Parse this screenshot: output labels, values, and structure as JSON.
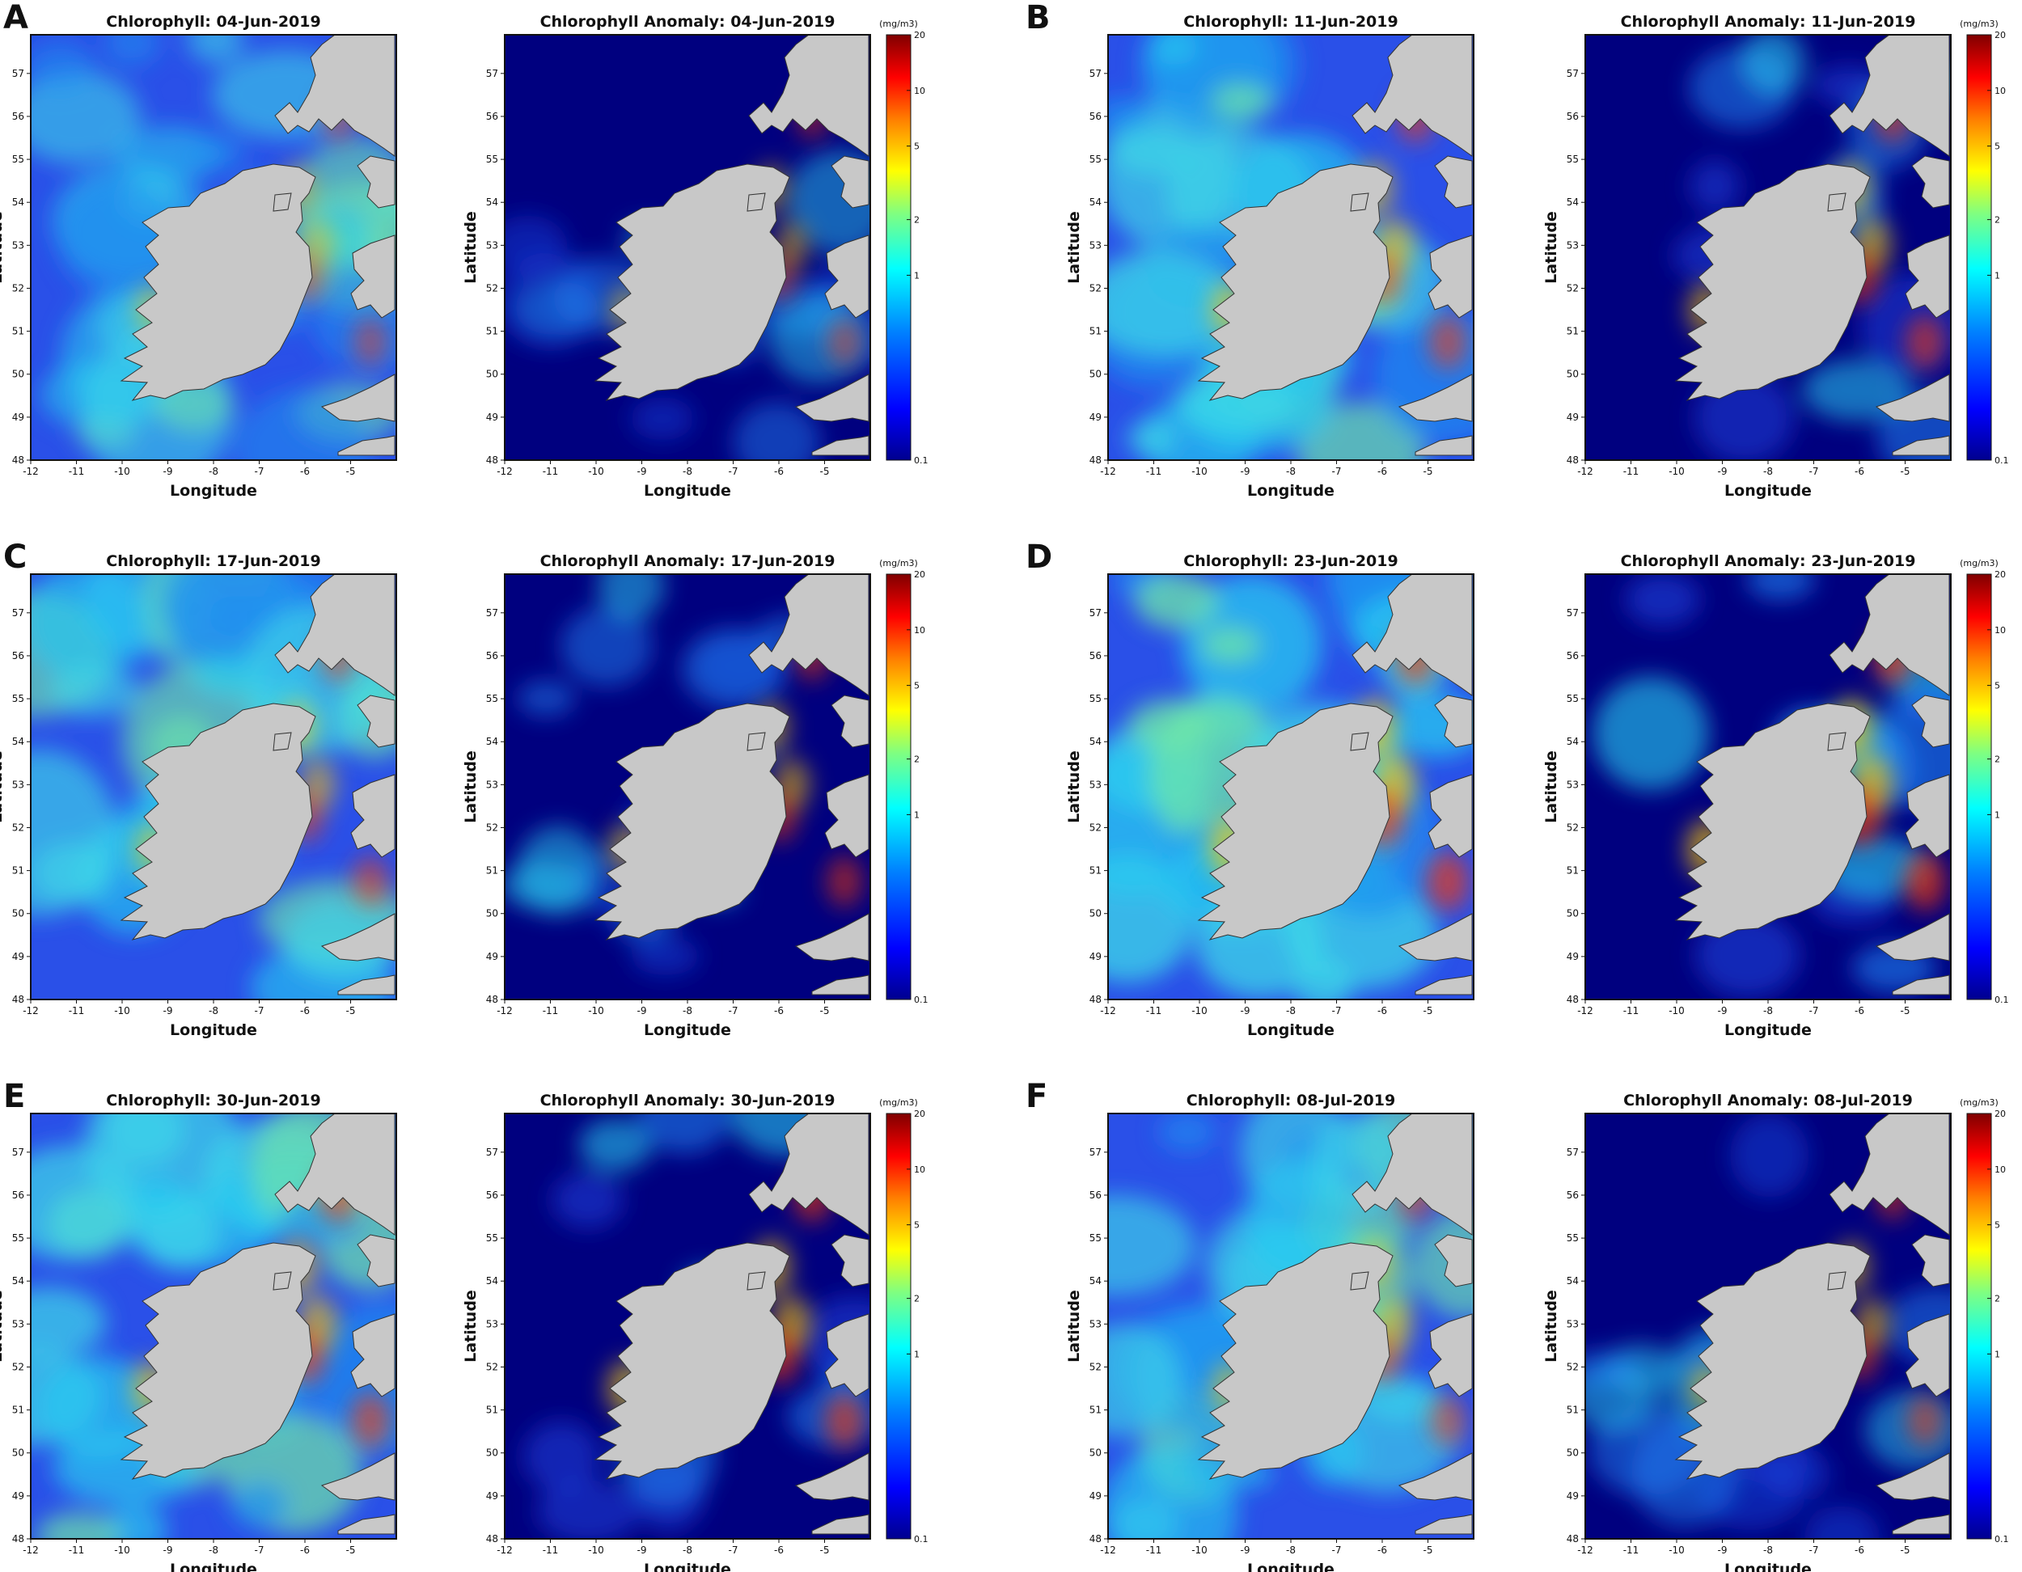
{
  "figure": {
    "panels": [
      {
        "letter": "A",
        "chlorophyll_title": "Chlorophyll: 04-Jun-2019",
        "anomaly_title": "Chlorophyll Anomaly: 04-Jun-2019",
        "level": 0.35
      },
      {
        "letter": "B",
        "chlorophyll_title": "Chlorophyll: 11-Jun-2019",
        "anomaly_title": "Chlorophyll Anomaly: 11-Jun-2019",
        "level": 0.55
      },
      {
        "letter": "C",
        "chlorophyll_title": "Chlorophyll: 17-Jun-2019",
        "anomaly_title": "Chlorophyll Anomaly: 17-Jun-2019",
        "level": 0.45
      },
      {
        "letter": "D",
        "chlorophyll_title": "Chlorophyll: 23-Jun-2019",
        "anomaly_title": "Chlorophyll Anomaly: 23-Jun-2019",
        "level": 0.7
      },
      {
        "letter": "E",
        "chlorophyll_title": "Chlorophyll: 30-Jun-2019",
        "anomaly_title": "Chlorophyll Anomaly: 30-Jun-2019",
        "level": 0.6
      },
      {
        "letter": "F",
        "chlorophyll_title": "Chlorophyll: 08-Jul-2019",
        "anomaly_title": "Chlorophyll Anomaly: 08-Jul-2019",
        "level": 0.45
      }
    ],
    "x_axis_label": "Longitude",
    "y_axis_label": "Latitude",
    "x_ticks": [
      "-12",
      "-11",
      "-10",
      "-9",
      "-8",
      "-7",
      "-6",
      "-5"
    ],
    "y_ticks": [
      "48",
      "49",
      "50",
      "51",
      "52",
      "53",
      "54",
      "55",
      "56",
      "57"
    ],
    "colorbar": {
      "unit": "(mg/m3)",
      "ticks": [
        "20",
        "10",
        "5",
        "2",
        "1",
        "0.1"
      ],
      "scale": "log",
      "range": [
        0.1,
        20
      ],
      "colors": [
        "#00008f",
        "#0000ff",
        "#0080ff",
        "#00ffff",
        "#80ff80",
        "#ffff00",
        "#ff8000",
        "#ff0000",
        "#800000"
      ]
    },
    "colors": {
      "land": "#c8c8c8",
      "anomaly_background": "#00007f",
      "ocean_low": "#2a50e8",
      "ocean_mid": "#27c9f0"
    }
  }
}
